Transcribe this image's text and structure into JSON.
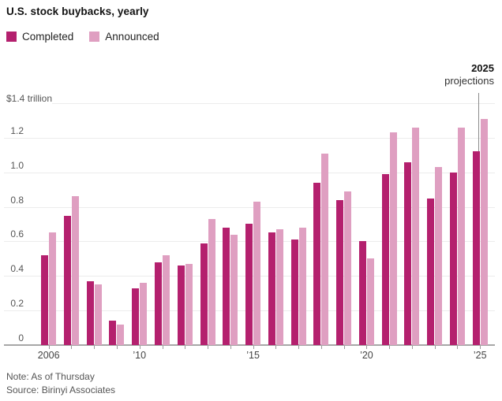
{
  "title": "U.S. stock buybacks, yearly",
  "legend": {
    "completed": "Completed",
    "announced": "Announced"
  },
  "annotation": {
    "year": "2025",
    "label": "projections"
  },
  "y_axis": {
    "top_label": "$1.4 trillion",
    "tick_values": [
      0,
      0.2,
      0.4,
      0.6,
      0.8,
      1.0,
      1.2
    ],
    "tick_labels": [
      "0",
      "0.2",
      "0.4",
      "0.6",
      "0.8",
      "1.0",
      "1.2"
    ]
  },
  "x_axis": {
    "labels": [
      {
        "index": 0,
        "text": "2006"
      },
      {
        "index": 4,
        "text": "’10"
      },
      {
        "index": 9,
        "text": "’15"
      },
      {
        "index": 14,
        "text": "’20"
      },
      {
        "index": 19,
        "text": "’25"
      }
    ]
  },
  "note": "Note: As of Thursday",
  "source": "Source: Birinyi Associates",
  "colors": {
    "completed": "#b4206e",
    "announced": "#df9fc1",
    "gridline": "#ececec",
    "axis": "#a7a7a7",
    "tick": "#9a9a9a",
    "projection_line": "#8c8c8c"
  },
  "chart_data": {
    "type": "bar",
    "title": "U.S. stock buybacks, yearly",
    "unit": "trillion USD",
    "categories": [
      2006,
      2007,
      2008,
      2009,
      2010,
      2011,
      2012,
      2013,
      2014,
      2015,
      2016,
      2017,
      2018,
      2019,
      2020,
      2021,
      2022,
      2023,
      2024,
      2025
    ],
    "series": [
      {
        "name": "Completed",
        "values": [
          0.52,
          0.75,
          0.37,
          0.14,
          0.33,
          0.48,
          0.46,
          0.59,
          0.68,
          0.7,
          0.65,
          0.61,
          0.94,
          0.84,
          0.6,
          0.99,
          1.06,
          0.85,
          1.0,
          1.12
        ]
      },
      {
        "name": "Announced",
        "values": [
          0.65,
          0.86,
          0.35,
          0.12,
          0.36,
          0.52,
          0.47,
          0.73,
          0.64,
          0.83,
          0.67,
          0.68,
          1.11,
          0.89,
          0.5,
          1.23,
          1.26,
          1.03,
          1.26,
          1.31
        ]
      }
    ],
    "ylim": [
      0,
      1.4
    ],
    "grid": true,
    "legend_position": "top-left",
    "annotation": "2025 projections marker on last category"
  }
}
